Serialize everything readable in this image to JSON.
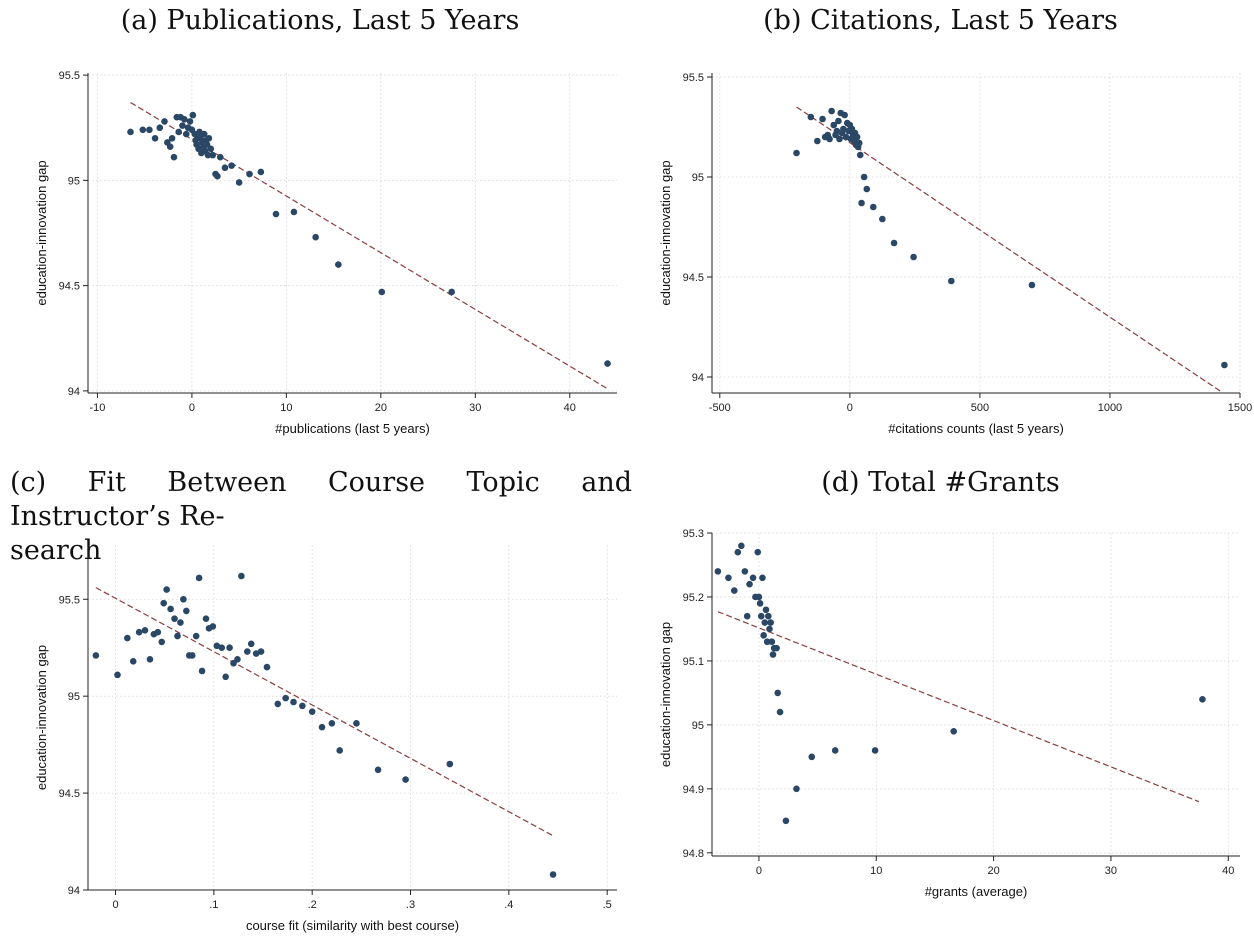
{
  "chart_data": [
    {
      "id": "a",
      "type": "scatter",
      "title": "(a) Publications, Last 5 Years",
      "xlabel": "#publications (last 5 years)",
      "ylabel": "education-innovation gap",
      "xlim": [
        -11,
        45
      ],
      "ylim": [
        93.99,
        95.51
      ],
      "xticks": [
        -10,
        0,
        10,
        20,
        30,
        40
      ],
      "yticks": [
        94,
        94.5,
        95,
        95.5
      ],
      "grid": true,
      "fit_line": [
        [
          -6.5,
          95.37
        ],
        [
          44,
          94.01
        ]
      ],
      "points": [
        [
          -6.5,
          95.23
        ],
        [
          -5.2,
          95.24
        ],
        [
          -4.5,
          95.24
        ],
        [
          -3.9,
          95.2
        ],
        [
          -3.4,
          95.25
        ],
        [
          -2.9,
          95.28
        ],
        [
          -2.6,
          95.18
        ],
        [
          -2.3,
          95.16
        ],
        [
          -2.1,
          95.2
        ],
        [
          -1.9,
          95.11
        ],
        [
          -1.6,
          95.3
        ],
        [
          -1.4,
          95.23
        ],
        [
          -1.2,
          95.3
        ],
        [
          -1.0,
          95.26
        ],
        [
          -0.8,
          95.29
        ],
        [
          -0.6,
          95.22
        ],
        [
          -0.4,
          95.25
        ],
        [
          -0.2,
          95.28
        ],
        [
          0,
          95.24
        ],
        [
          0.1,
          95.31
        ],
        [
          0.3,
          95.22
        ],
        [
          0.4,
          95.19
        ],
        [
          0.5,
          95.17
        ],
        [
          0.6,
          95.21
        ],
        [
          0.7,
          95.15
        ],
        [
          0.8,
          95.23
        ],
        [
          0.9,
          95.2
        ],
        [
          1.0,
          95.13
        ],
        [
          1.1,
          95.18
        ],
        [
          1.2,
          95.16
        ],
        [
          1.3,
          95.22
        ],
        [
          1.4,
          95.14
        ],
        [
          1.5,
          95.19
        ],
        [
          1.6,
          95.17
        ],
        [
          1.7,
          95.12
        ],
        [
          1.8,
          95.2
        ],
        [
          2.0,
          95.15
        ],
        [
          2.2,
          95.12
        ],
        [
          2.5,
          95.03
        ],
        [
          2.7,
          95.02
        ],
        [
          3.0,
          95.11
        ],
        [
          3.5,
          95.06
        ],
        [
          4.2,
          95.07
        ],
        [
          5.0,
          94.99
        ],
        [
          6.1,
          95.03
        ],
        [
          7.3,
          95.04
        ],
        [
          8.9,
          94.84
        ],
        [
          10.8,
          94.85
        ],
        [
          13.1,
          94.73
        ],
        [
          15.5,
          94.6
        ],
        [
          20.1,
          94.47
        ],
        [
          27.5,
          94.47
        ],
        [
          44.0,
          94.13
        ]
      ]
    },
    {
      "id": "b",
      "type": "scatter",
      "title": "(b) Citations, Last 5 Years",
      "xlabel": "#citations counts (last 5 years)",
      "ylabel": "education-innovation gap",
      "xlim": [
        -530,
        1500
      ],
      "ylim": [
        93.92,
        95.52
      ],
      "xticks": [
        -500,
        0,
        500,
        1000,
        1500
      ],
      "yticks": [
        94,
        94.5,
        95,
        95.5
      ],
      "grid": true,
      "fit_line": [
        [
          -205,
          95.35
        ],
        [
          1435,
          93.92
        ]
      ],
      "points": [
        [
          -205,
          95.12
        ],
        [
          -150,
          95.3
        ],
        [
          -125,
          95.18
        ],
        [
          -105,
          95.29
        ],
        [
          -95,
          95.2
        ],
        [
          -85,
          95.21
        ],
        [
          -78,
          95.19
        ],
        [
          -70,
          95.33
        ],
        [
          -62,
          95.26
        ],
        [
          -55,
          95.21
        ],
        [
          -50,
          95.23
        ],
        [
          -44,
          95.28
        ],
        [
          -40,
          95.19
        ],
        [
          -35,
          95.32
        ],
        [
          -30,
          95.22
        ],
        [
          -25,
          95.24
        ],
        [
          -20,
          95.31
        ],
        [
          -15,
          95.2
        ],
        [
          -10,
          95.27
        ],
        [
          -5,
          95.23
        ],
        [
          0,
          95.26
        ],
        [
          4,
          95.19
        ],
        [
          8,
          95.24
        ],
        [
          12,
          95.21
        ],
        [
          16,
          95.18
        ],
        [
          20,
          95.22
        ],
        [
          24,
          95.16
        ],
        [
          28,
          95.2
        ],
        [
          32,
          95.15
        ],
        [
          36,
          95.17
        ],
        [
          40,
          95.11
        ],
        [
          45,
          94.87
        ],
        [
          55,
          95.0
        ],
        [
          65,
          94.94
        ],
        [
          90,
          94.85
        ],
        [
          125,
          94.79
        ],
        [
          170,
          94.67
        ],
        [
          245,
          94.6
        ],
        [
          390,
          94.48
        ],
        [
          700,
          94.46
        ],
        [
          1440,
          94.06
        ]
      ]
    },
    {
      "id": "c",
      "type": "scatter",
      "title": "(c) Fit Between Course Topic and Instructor’s Research",
      "title_lines": [
        "(c) Fit Between Course Topic and Instructor’s Re-",
        "search"
      ],
      "xlabel": "course fit (similarity with best course)",
      "ylabel": "education-innovation gap",
      "xlim": [
        -0.028,
        0.51
      ],
      "ylim": [
        94.0,
        95.78
      ],
      "xticks": [
        0,
        0.1,
        0.2,
        0.3,
        0.4,
        0.5
      ],
      "xtick_labels": [
        "0",
        ".1",
        ".2",
        ".3",
        ".4",
        ".5"
      ],
      "yticks": [
        94,
        94.5,
        95,
        95.5
      ],
      "grid": true,
      "fit_line": [
        [
          -0.02,
          95.56
        ],
        [
          0.445,
          94.28
        ]
      ],
      "points": [
        [
          -0.02,
          95.21
        ],
        [
          0.002,
          95.11
        ],
        [
          0.012,
          95.3
        ],
        [
          0.018,
          95.18
        ],
        [
          0.024,
          95.33
        ],
        [
          0.03,
          95.34
        ],
        [
          0.035,
          95.19
        ],
        [
          0.039,
          95.32
        ],
        [
          0.043,
          95.33
        ],
        [
          0.047,
          95.28
        ],
        [
          0.049,
          95.48
        ],
        [
          0.052,
          95.55
        ],
        [
          0.056,
          95.45
        ],
        [
          0.06,
          95.4
        ],
        [
          0.063,
          95.31
        ],
        [
          0.066,
          95.38
        ],
        [
          0.069,
          95.5
        ],
        [
          0.072,
          95.44
        ],
        [
          0.075,
          95.21
        ],
        [
          0.078,
          95.21
        ],
        [
          0.082,
          95.31
        ],
        [
          0.085,
          95.61
        ],
        [
          0.088,
          95.13
        ],
        [
          0.092,
          95.4
        ],
        [
          0.095,
          95.35
        ],
        [
          0.099,
          95.36
        ],
        [
          0.103,
          95.26
        ],
        [
          0.108,
          95.25
        ],
        [
          0.112,
          95.1
        ],
        [
          0.116,
          95.25
        ],
        [
          0.12,
          95.17
        ],
        [
          0.124,
          95.19
        ],
        [
          0.128,
          95.62
        ],
        [
          0.134,
          95.23
        ],
        [
          0.138,
          95.27
        ],
        [
          0.143,
          95.22
        ],
        [
          0.148,
          95.23
        ],
        [
          0.154,
          95.15
        ],
        [
          0.165,
          94.96
        ],
        [
          0.173,
          94.99
        ],
        [
          0.181,
          94.97
        ],
        [
          0.19,
          94.95
        ],
        [
          0.2,
          94.92
        ],
        [
          0.21,
          94.84
        ],
        [
          0.22,
          94.86
        ],
        [
          0.228,
          94.72
        ],
        [
          0.245,
          94.86
        ],
        [
          0.267,
          94.62
        ],
        [
          0.295,
          94.57
        ],
        [
          0.34,
          94.65
        ],
        [
          0.445,
          94.08
        ]
      ]
    },
    {
      "id": "d",
      "type": "scatter",
      "title": "(d) Total #Grants",
      "xlabel": "#grants  (average)",
      "ylabel": "education-innovation gap",
      "xlim": [
        -4,
        41
      ],
      "ylim": [
        94.795,
        95.3
      ],
      "xticks": [
        0,
        10,
        20,
        30,
        40
      ],
      "yticks": [
        94.8,
        94.9,
        95,
        95.1,
        95.2,
        95.3
      ],
      "ytick_labels": [
        "94.8",
        "94.9",
        "95",
        "95.1",
        "95.2",
        "95.3"
      ],
      "grid": true,
      "fit_line": [
        [
          -3.5,
          95.177
        ],
        [
          37.5,
          94.88
        ]
      ],
      "points": [
        [
          -3.5,
          95.24
        ],
        [
          -2.6,
          95.23
        ],
        [
          -2.1,
          95.21
        ],
        [
          -1.8,
          95.27
        ],
        [
          -1.5,
          95.28
        ],
        [
          -1.2,
          95.24
        ],
        [
          -1.0,
          95.17
        ],
        [
          -0.8,
          95.22
        ],
        [
          -0.5,
          95.23
        ],
        [
          -0.3,
          95.2
        ],
        [
          -0.1,
          95.27
        ],
        [
          0.0,
          95.2
        ],
        [
          0.1,
          95.19
        ],
        [
          0.2,
          95.17
        ],
        [
          0.3,
          95.23
        ],
        [
          0.4,
          95.14
        ],
        [
          0.5,
          95.16
        ],
        [
          0.6,
          95.18
        ],
        [
          0.7,
          95.13
        ],
        [
          0.8,
          95.17
        ],
        [
          0.9,
          95.15
        ],
        [
          1.0,
          95.16
        ],
        [
          1.1,
          95.13
        ],
        [
          1.2,
          95.11
        ],
        [
          1.3,
          95.12
        ],
        [
          1.5,
          95.12
        ],
        [
          1.6,
          95.05
        ],
        [
          1.8,
          95.02
        ],
        [
          2.3,
          94.85
        ],
        [
          3.2,
          94.9
        ],
        [
          4.5,
          94.95
        ],
        [
          6.5,
          94.96
        ],
        [
          9.9,
          94.96
        ],
        [
          16.6,
          94.99
        ],
        [
          37.8,
          95.04
        ]
      ]
    }
  ]
}
